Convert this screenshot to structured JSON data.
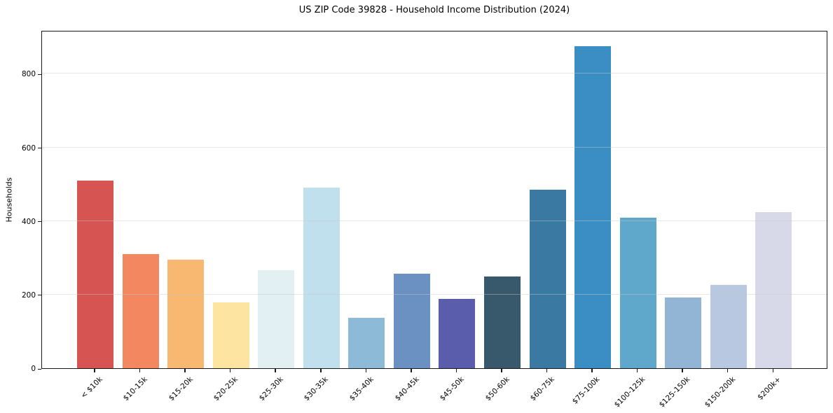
{
  "chart_data": {
    "type": "bar",
    "title": "US ZIP Code 39828 - Household Income Distribution (2024)",
    "xlabel": "",
    "ylabel": "Households",
    "categories": [
      "< $10k",
      "$10-15k",
      "$15-20k",
      "$20-25k",
      "$25-30k",
      "$30-35k",
      "$35-40k",
      "$40-45k",
      "$45-50k",
      "$50-60k",
      "$60-75k",
      "$75-100k",
      "$100-125k",
      "$125-150k",
      "$150-200k",
      "$200k+"
    ],
    "values": [
      510,
      311,
      295,
      178,
      266,
      490,
      138,
      256,
      188,
      250,
      485,
      875,
      410,
      192,
      226,
      425
    ],
    "bar_colors": [
      "#d65552",
      "#f3875f",
      "#f9b871",
      "#fde4a0",
      "#e2eff3",
      "#bfe0ec",
      "#8dbad6",
      "#6b90c2",
      "#5a5dab",
      "#38596b",
      "#3a79a1",
      "#3b8ec4",
      "#60a7cc",
      "#92b5d6",
      "#b8c8e0",
      "#d8d9e8"
    ],
    "yticks": [
      0,
      200,
      400,
      600,
      800
    ],
    "ylim": [
      0,
      918.75
    ],
    "grid": "horizontal",
    "legend": "none",
    "background_color": "#ffffff",
    "grid_color": "#e8e8e8",
    "spine_color": "#1a1a1a"
  }
}
